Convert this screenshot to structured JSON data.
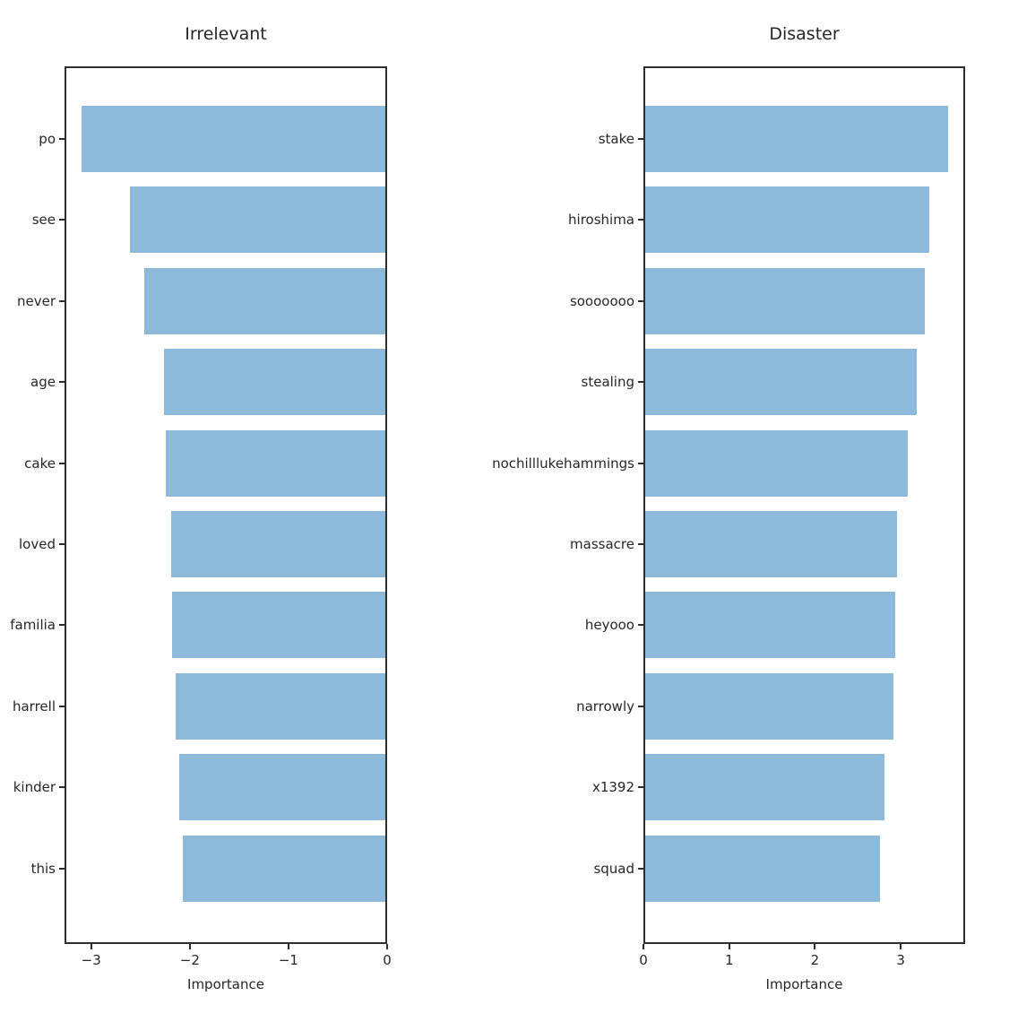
{
  "chart_data": [
    {
      "type": "bar",
      "orientation": "horizontal",
      "title": "Irrelevant",
      "xlabel": "Importance",
      "categories": [
        "po",
        "see",
        "never",
        "age",
        "cake",
        "loved",
        "familia",
        "harrell",
        "kinder",
        "this"
      ],
      "values": [
        -3.11,
        -2.62,
        -2.47,
        -2.27,
        -2.25,
        -2.2,
        -2.19,
        -2.15,
        -2.11,
        -2.08
      ],
      "xlim": [
        -3.27,
        0
      ],
      "xticks": [
        -3,
        -2,
        -1,
        0
      ],
      "xtick_labels": [
        "−3",
        "−2",
        "−1",
        "0"
      ],
      "grid": false,
      "legend": null
    },
    {
      "type": "bar",
      "orientation": "horizontal",
      "title": "Disaster",
      "xlabel": "Importance",
      "categories": [
        "stake",
        "hiroshima",
        "sooooooo",
        "stealing",
        "nochilllukehammings",
        "massacre",
        "heyooo",
        "narrowly",
        "x1392",
        "squad"
      ],
      "values": [
        3.57,
        3.35,
        3.3,
        3.2,
        3.09,
        2.97,
        2.95,
        2.93,
        2.82,
        2.77
      ],
      "xlim": [
        0,
        3.75
      ],
      "xticks": [
        0,
        1,
        2,
        3
      ],
      "xtick_labels": [
        "0",
        "1",
        "2",
        "3"
      ],
      "grid": false,
      "legend": null
    }
  ],
  "style": {
    "bar_color": "#8dbad9",
    "spine_color": "#2e2e2e",
    "text_color": "#262626",
    "background": "#ffffff"
  }
}
